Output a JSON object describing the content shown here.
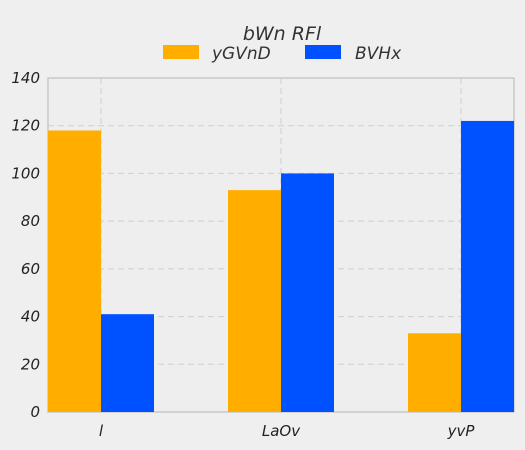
{
  "chart_data": {
    "type": "bar",
    "title": "bWn RFl",
    "xlabel": "",
    "ylabel": "",
    "categories": [
      "l",
      "LaOv",
      "yvP"
    ],
    "series": [
      {
        "name": "yGVnD",
        "values": [
          118,
          93,
          33
        ],
        "color": "#ffae00"
      },
      {
        "name": "BVHx",
        "values": [
          41,
          100,
          122
        ],
        "color": "#0051ff"
      }
    ],
    "ylim": [
      0,
      140
    ],
    "yticks": [
      0,
      20,
      40,
      60,
      80,
      100,
      120,
      140
    ],
    "grid": true,
    "legend": "top-center"
  }
}
